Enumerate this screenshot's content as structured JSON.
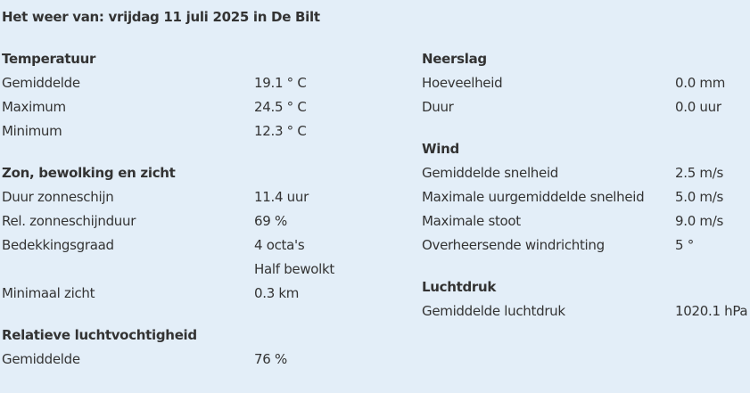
{
  "title": "Het weer van: vrijdag 11 juli 2025 in De Bilt",
  "left": [
    {
      "heading": "Temperatuur",
      "rows": [
        {
          "label": "Gemiddelde",
          "value": "19.1 ° C"
        },
        {
          "label": "Maximum",
          "value": "24.5 ° C"
        },
        {
          "label": "Minimum",
          "value": "12.3 ° C"
        }
      ]
    },
    {
      "heading": "Zon, bewolking en zicht",
      "rows": [
        {
          "label": "Duur zonneschijn",
          "value": "11.4 uur"
        },
        {
          "label": "Rel. zonneschijnduur",
          "value": "69 %"
        },
        {
          "label": "Bedekkingsgraad",
          "value": "4 octa's"
        },
        {
          "label": "",
          "value": "Half bewolkt"
        },
        {
          "label": "Minimaal zicht",
          "value": "0.3 km"
        }
      ]
    },
    {
      "heading": "Relatieve luchtvochtigheid",
      "rows": [
        {
          "label": "Gemiddelde",
          "value": "76 %"
        }
      ]
    }
  ],
  "right": [
    {
      "heading": "Neerslag",
      "rows": [
        {
          "label": "Hoeveelheid",
          "value": "0.0 mm"
        },
        {
          "label": "Duur",
          "value": "0.0 uur"
        }
      ]
    },
    {
      "heading": "Wind",
      "rows": [
        {
          "label": "Gemiddelde snelheid",
          "value": "2.5 m/s"
        },
        {
          "label": "Maximale uurgemiddelde snelheid",
          "value": "5.0 m/s"
        },
        {
          "label": "Maximale stoot",
          "value": "9.0 m/s"
        },
        {
          "label": "Overheersende windrichting",
          "value": "5 °"
        }
      ]
    },
    {
      "heading": "Luchtdruk",
      "rows": [
        {
          "label": "Gemiddelde luchtdruk",
          "value": "1020.1 hPa"
        }
      ]
    }
  ]
}
